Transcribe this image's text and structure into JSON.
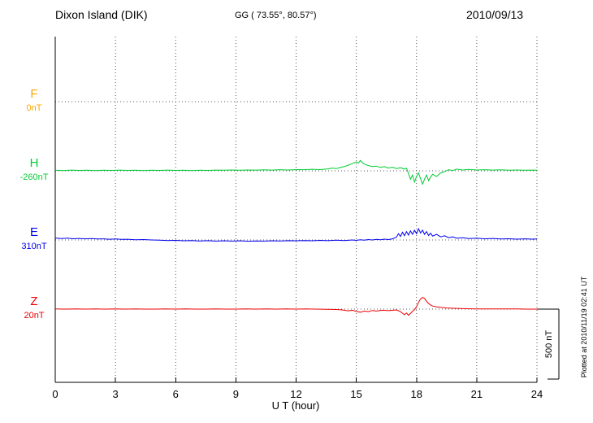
{
  "header": {
    "title": "Dixon Island (DIK)",
    "coordinates": "GG ( 73.55°,  80.57°)",
    "date": "2010/09/13"
  },
  "footer_note": "Plotted at 2010/11/19 02:41 UT",
  "scale_bar": {
    "label": "500 nT",
    "nT": 500
  },
  "chart_data": {
    "type": "line",
    "title": "Dixon Island (DIK) magnetogram 2010/09/13",
    "xlabel": "U T (hour)",
    "x_range": [
      0,
      24
    ],
    "x_ticks": [
      0,
      3,
      6,
      9,
      12,
      15,
      18,
      21,
      24
    ],
    "grid": "dotted vertical at each 3h, dotted horizontal baseline per trace",
    "scale_nT_per_division": 500,
    "series": [
      {
        "name": "F",
        "baseline_label": "0nT",
        "baseline_nT": 0,
        "color": "#FFA500",
        "points": []
      },
      {
        "name": "H",
        "baseline_label": "-260nT",
        "baseline_nT": -260,
        "color": "#00CC33",
        "points": [
          [
            0,
            4
          ],
          [
            0.4,
            2
          ],
          [
            0.8,
            5
          ],
          [
            1.2,
            3
          ],
          [
            1.6,
            4
          ],
          [
            2,
            2
          ],
          [
            2.4,
            4
          ],
          [
            2.8,
            3
          ],
          [
            3.2,
            5
          ],
          [
            3.6,
            3
          ],
          [
            4,
            4
          ],
          [
            4.4,
            2
          ],
          [
            4.8,
            4
          ],
          [
            5.2,
            3
          ],
          [
            5.6,
            5
          ],
          [
            6,
            3
          ],
          [
            6.4,
            4
          ],
          [
            6.8,
            2
          ],
          [
            7.2,
            4
          ],
          [
            7.6,
            3
          ],
          [
            8,
            5
          ],
          [
            8.4,
            4
          ],
          [
            8.8,
            6
          ],
          [
            9.2,
            4
          ],
          [
            9.6,
            6
          ],
          [
            10,
            5
          ],
          [
            10.4,
            7
          ],
          [
            10.8,
            5
          ],
          [
            11.2,
            8
          ],
          [
            11.6,
            6
          ],
          [
            12,
            9
          ],
          [
            12.4,
            8
          ],
          [
            12.8,
            11
          ],
          [
            13.2,
            9
          ],
          [
            13.6,
            14
          ],
          [
            13.8,
            20
          ],
          [
            14,
            16
          ],
          [
            14.2,
            24
          ],
          [
            14.4,
            30
          ],
          [
            14.6,
            40
          ],
          [
            14.8,
            52
          ],
          [
            15,
            64
          ],
          [
            15.1,
            55
          ],
          [
            15.2,
            74
          ],
          [
            15.3,
            60
          ],
          [
            15.4,
            48
          ],
          [
            15.6,
            38
          ],
          [
            15.8,
            30
          ],
          [
            16,
            34
          ],
          [
            16.2,
            24
          ],
          [
            16.4,
            30
          ],
          [
            16.6,
            20
          ],
          [
            16.8,
            26
          ],
          [
            17,
            16
          ],
          [
            17.2,
            22
          ],
          [
            17.4,
            12
          ],
          [
            17.5,
            20
          ],
          [
            17.6,
            -20
          ],
          [
            17.7,
            -60
          ],
          [
            17.8,
            -30
          ],
          [
            17.9,
            -80
          ],
          [
            18,
            -40
          ],
          [
            18.1,
            -15
          ],
          [
            18.2,
            -55
          ],
          [
            18.3,
            -95
          ],
          [
            18.4,
            -60
          ],
          [
            18.5,
            -30
          ],
          [
            18.6,
            -70
          ],
          [
            18.7,
            -45
          ],
          [
            18.8,
            -25
          ],
          [
            19,
            -40
          ],
          [
            19.2,
            -15
          ],
          [
            19.4,
            -5
          ],
          [
            19.6,
            8
          ],
          [
            19.8,
            2
          ],
          [
            20,
            12
          ],
          [
            20.3,
            6
          ],
          [
            20.6,
            10
          ],
          [
            21,
            6
          ],
          [
            21.4,
            8
          ],
          [
            21.8,
            5
          ],
          [
            22.2,
            7
          ],
          [
            22.6,
            4
          ],
          [
            23,
            6
          ],
          [
            23.4,
            4
          ],
          [
            23.8,
            5
          ],
          [
            24,
            4
          ]
        ]
      },
      {
        "name": "E",
        "baseline_label": "310nT",
        "baseline_nT": 310,
        "color": "#0000EE",
        "points": [
          [
            0,
            14
          ],
          [
            0.3,
            10
          ],
          [
            0.6,
            13
          ],
          [
            0.9,
            9
          ],
          [
            1.2,
            11
          ],
          [
            1.5,
            8
          ],
          [
            1.8,
            10
          ],
          [
            2.1,
            7
          ],
          [
            2.4,
            8
          ],
          [
            2.7,
            5
          ],
          [
            3,
            7
          ],
          [
            3.3,
            4
          ],
          [
            3.6,
            5
          ],
          [
            4,
            2
          ],
          [
            4.4,
            3
          ],
          [
            4.8,
            0
          ],
          [
            5.2,
            -2
          ],
          [
            5.6,
            -4
          ],
          [
            6,
            -3
          ],
          [
            6.4,
            -6
          ],
          [
            6.8,
            -4
          ],
          [
            7.2,
            -7
          ],
          [
            7.6,
            -5
          ],
          [
            8,
            -8
          ],
          [
            8.4,
            -6
          ],
          [
            8.8,
            -8
          ],
          [
            9.2,
            -6
          ],
          [
            9.6,
            -9
          ],
          [
            10,
            -7
          ],
          [
            10.4,
            -8
          ],
          [
            10.8,
            -6
          ],
          [
            11.2,
            -7
          ],
          [
            11.6,
            -5
          ],
          [
            12,
            -6
          ],
          [
            12.4,
            -4
          ],
          [
            12.8,
            -6
          ],
          [
            13.2,
            -3
          ],
          [
            13.6,
            -5
          ],
          [
            14,
            -2
          ],
          [
            14.4,
            -4
          ],
          [
            14.8,
            0
          ],
          [
            15,
            -3
          ],
          [
            15.2,
            2
          ],
          [
            15.4,
            -2
          ],
          [
            15.6,
            3
          ],
          [
            15.8,
            0
          ],
          [
            16,
            4
          ],
          [
            16.2,
            1
          ],
          [
            16.4,
            6
          ],
          [
            16.6,
            3
          ],
          [
            16.8,
            8
          ],
          [
            17,
            20
          ],
          [
            17.1,
            45
          ],
          [
            17.2,
            25
          ],
          [
            17.3,
            55
          ],
          [
            17.4,
            30
          ],
          [
            17.5,
            60
          ],
          [
            17.6,
            35
          ],
          [
            17.7,
            65
          ],
          [
            17.8,
            40
          ],
          [
            17.9,
            70
          ],
          [
            18,
            45
          ],
          [
            18.1,
            80
          ],
          [
            18.2,
            50
          ],
          [
            18.3,
            70
          ],
          [
            18.4,
            40
          ],
          [
            18.5,
            60
          ],
          [
            18.6,
            32
          ],
          [
            18.7,
            48
          ],
          [
            18.8,
            28
          ],
          [
            19,
            40
          ],
          [
            19.2,
            22
          ],
          [
            19.4,
            30
          ],
          [
            19.6,
            16
          ],
          [
            19.8,
            22
          ],
          [
            20,
            12
          ],
          [
            20.3,
            16
          ],
          [
            20.6,
            10
          ],
          [
            21,
            13
          ],
          [
            21.4,
            8
          ],
          [
            21.8,
            11
          ],
          [
            22.2,
            7
          ],
          [
            22.6,
            9
          ],
          [
            23,
            6
          ],
          [
            23.4,
            8
          ],
          [
            23.8,
            6
          ],
          [
            24,
            7
          ]
        ]
      },
      {
        "name": "Z",
        "baseline_label": "20nT",
        "baseline_nT": 20,
        "color": "#EE0000",
        "points": [
          [
            0,
            1
          ],
          [
            0.5,
            0
          ],
          [
            1,
            1
          ],
          [
            1.5,
            0
          ],
          [
            2,
            1
          ],
          [
            2.5,
            0
          ],
          [
            3,
            1
          ],
          [
            3.5,
            0
          ],
          [
            4,
            1
          ],
          [
            4.5,
            0
          ],
          [
            5,
            0
          ],
          [
            5.5,
            1
          ],
          [
            6,
            0
          ],
          [
            6.5,
            1
          ],
          [
            7,
            0
          ],
          [
            7.5,
            0
          ],
          [
            8,
            1
          ],
          [
            8.5,
            0
          ],
          [
            9,
            0
          ],
          [
            9.5,
            1
          ],
          [
            10,
            0
          ],
          [
            10.5,
            1
          ],
          [
            11,
            0
          ],
          [
            11.5,
            1
          ],
          [
            12,
            0
          ],
          [
            12.5,
            1
          ],
          [
            13,
            0
          ],
          [
            13.5,
            -1
          ],
          [
            14,
            -3
          ],
          [
            14.3,
            -6
          ],
          [
            14.6,
            -12
          ],
          [
            14.8,
            -8
          ],
          [
            15,
            -16
          ],
          [
            15.2,
            -22
          ],
          [
            15.4,
            -14
          ],
          [
            15.6,
            -18
          ],
          [
            15.8,
            -10
          ],
          [
            16,
            -14
          ],
          [
            16.3,
            -8
          ],
          [
            16.6,
            -11
          ],
          [
            17,
            -6
          ],
          [
            17.2,
            -18
          ],
          [
            17.4,
            -40
          ],
          [
            17.5,
            -28
          ],
          [
            17.6,
            -44
          ],
          [
            17.8,
            -16
          ],
          [
            17.9,
            -4
          ],
          [
            18,
            18
          ],
          [
            18.1,
            48
          ],
          [
            18.2,
            72
          ],
          [
            18.3,
            84
          ],
          [
            18.4,
            76
          ],
          [
            18.5,
            56
          ],
          [
            18.6,
            40
          ],
          [
            18.7,
            30
          ],
          [
            18.8,
            22
          ],
          [
            19,
            16
          ],
          [
            19.2,
            12
          ],
          [
            19.5,
            8
          ],
          [
            20,
            5
          ],
          [
            20.5,
            3
          ],
          [
            21,
            2
          ],
          [
            21.5,
            2
          ],
          [
            22,
            1
          ],
          [
            22.5,
            1
          ],
          [
            23,
            1
          ],
          [
            23.5,
            0
          ],
          [
            24,
            0
          ]
        ]
      }
    ]
  }
}
